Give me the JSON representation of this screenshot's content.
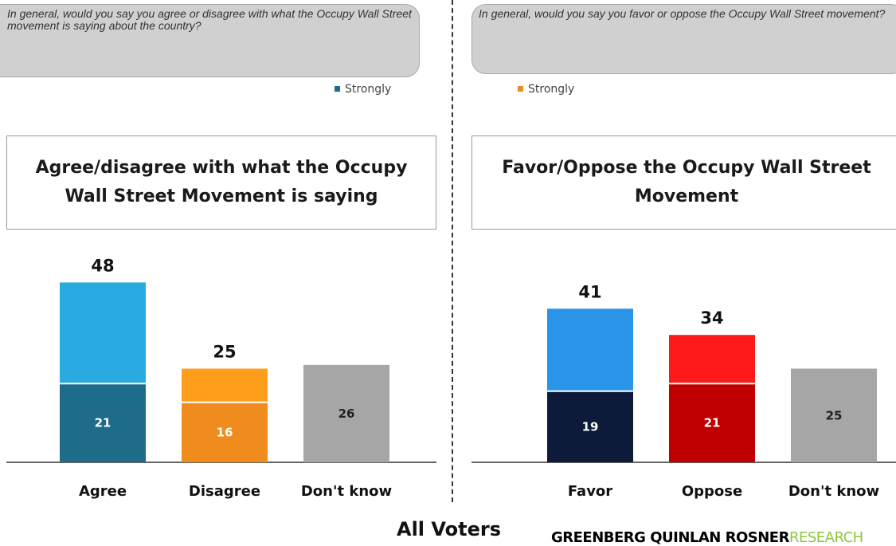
{
  "questions": {
    "left": "In general, would you say you agree or disagree with what the Occupy Wall Street movement is saying about the country?",
    "right": "In general, would you say you favor or oppose the Occupy Wall Street movement?"
  },
  "legend": {
    "left": {
      "label": "Strongly",
      "color": "#1f6b8a"
    },
    "right": {
      "label": "Strongly",
      "color": "#f08c1e"
    }
  },
  "footer": {
    "title": "All Voters",
    "brand_bold": "GREENBERG QUINLAN ROSNER",
    "brand_light": "RESEARCH"
  },
  "chart_data": [
    {
      "type": "bar",
      "title": "Agree/disagree with what the Occupy Wall Street Movement is saying",
      "categories": [
        "Agree",
        "Disagree",
        "Don't know"
      ],
      "totals": [
        48,
        25,
        26
      ],
      "series": [
        {
          "name": "Strongly",
          "values": [
            21,
            16,
            null
          ]
        }
      ],
      "total_labels": [
        "48",
        "25",
        ""
      ],
      "inner_labels": [
        "21",
        "16",
        "26"
      ],
      "colors": {
        "total": [
          "#29abe2",
          "#ff9e1b",
          "#a6a6a6"
        ],
        "strongly": [
          "#1f6b8a",
          "#f08c1e",
          "#a6a6a6"
        ]
      }
    },
    {
      "type": "bar",
      "title": "Favor/Oppose the Occupy Wall Street Movement",
      "categories": [
        "Favor",
        "Oppose",
        "Don't know"
      ],
      "totals": [
        41,
        34,
        25
      ],
      "series": [
        {
          "name": "Strongly",
          "values": [
            19,
            21,
            null
          ]
        }
      ],
      "total_labels": [
        "41",
        "34",
        ""
      ],
      "inner_labels": [
        "19",
        "21",
        "25"
      ],
      "colors": {
        "total": [
          "#2994e8",
          "#ff1a1a",
          "#a6a6a6"
        ],
        "strongly": [
          "#0d1a3a",
          "#c00000",
          "#a6a6a6"
        ]
      }
    }
  ]
}
